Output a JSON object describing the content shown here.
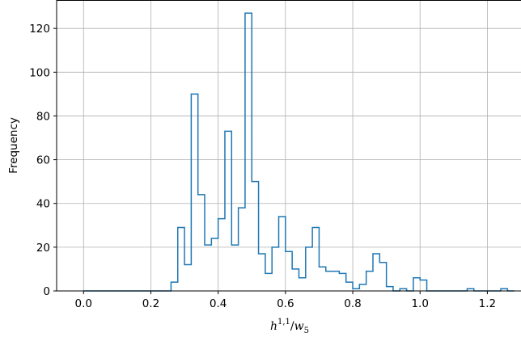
{
  "chart_data": {
    "type": "histogram",
    "xlabel": "h^{1,1}/w_5",
    "xlabel_parts": {
      "base": "h",
      "sup": "1,1",
      "slash": "/",
      "w": "w",
      "sub": "5"
    },
    "ylabel": "Frequency",
    "xlim": [
      -0.08,
      1.3
    ],
    "ylim": [
      0,
      133
    ],
    "grid": true,
    "x_ticks": [
      "0.0",
      "0.2",
      "0.4",
      "0.6",
      "0.8",
      "1.0",
      "1.2"
    ],
    "x_tick_values": [
      0.0,
      0.2,
      0.4,
      0.6,
      0.8,
      1.0,
      1.2
    ],
    "y_ticks": [
      "0",
      "20",
      "40",
      "60",
      "80",
      "100",
      "120"
    ],
    "y_tick_values": [
      0,
      20,
      40,
      60,
      80,
      100,
      120
    ],
    "bin_start": 0.0,
    "bin_width": 0.02,
    "counts": [
      0,
      0,
      0,
      0,
      0,
      0,
      0,
      0,
      0,
      0,
      0,
      0,
      0,
      4,
      29,
      12,
      90,
      44,
      21,
      24,
      33,
      73,
      21,
      38,
      127,
      50,
      17,
      8,
      20,
      34,
      18,
      10,
      6,
      20,
      29,
      11,
      9,
      9,
      8,
      4,
      1,
      3,
      9,
      17,
      13,
      2,
      0,
      1,
      0,
      6,
      5,
      0,
      0,
      0,
      0,
      0,
      0,
      1,
      0,
      0,
      0,
      0,
      1,
      0
    ],
    "color": "#1f77b4"
  }
}
